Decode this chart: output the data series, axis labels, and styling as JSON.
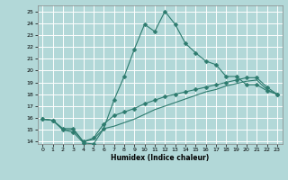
{
  "xlabel": "Humidex (Indice chaleur)",
  "bg_color": "#b2d8d8",
  "grid_color": "#ffffff",
  "line_color": "#2d7b6e",
  "xlim": [
    -0.5,
    23.5
  ],
  "ylim": [
    13.8,
    25.5
  ],
  "xticks": [
    0,
    1,
    2,
    3,
    4,
    5,
    6,
    7,
    8,
    9,
    10,
    11,
    12,
    13,
    14,
    15,
    16,
    17,
    18,
    19,
    20,
    21,
    22,
    23
  ],
  "yticks": [
    14,
    15,
    16,
    17,
    18,
    19,
    20,
    21,
    22,
    23,
    24,
    25
  ],
  "curve1_x": [
    0,
    1,
    2,
    3,
    4,
    5,
    6,
    7,
    8,
    9,
    10,
    11,
    12,
    13,
    14,
    15,
    16,
    17,
    18,
    19,
    20,
    21,
    22,
    23
  ],
  "curve1_y": [
    15.9,
    15.8,
    15.0,
    14.8,
    13.9,
    13.8,
    15.1,
    17.5,
    19.5,
    21.8,
    23.9,
    23.3,
    25.0,
    23.9,
    22.3,
    21.5,
    20.8,
    20.5,
    19.5,
    19.5,
    18.8,
    18.8,
    18.3,
    18.0
  ],
  "curve2_x": [
    0,
    1,
    2,
    3,
    4,
    5,
    6,
    7,
    8,
    9,
    10,
    11,
    12,
    13,
    14,
    15,
    16,
    17,
    18,
    19,
    20,
    21,
    22,
    23
  ],
  "curve2_y": [
    15.9,
    15.8,
    15.1,
    15.1,
    14.0,
    14.3,
    15.5,
    16.2,
    16.5,
    16.8,
    17.2,
    17.5,
    17.8,
    18.0,
    18.2,
    18.4,
    18.6,
    18.8,
    19.0,
    19.2,
    19.4,
    19.4,
    18.6,
    18.0
  ],
  "curve3_x": [
    0,
    1,
    2,
    3,
    4,
    5,
    6,
    7,
    8,
    9,
    10,
    11,
    12,
    13,
    14,
    15,
    16,
    17,
    18,
    19,
    20,
    21,
    22,
    23
  ],
  "curve3_y": [
    15.9,
    15.8,
    15.0,
    15.0,
    14.0,
    14.2,
    15.1,
    15.3,
    15.6,
    15.9,
    16.3,
    16.7,
    17.0,
    17.3,
    17.6,
    17.9,
    18.2,
    18.4,
    18.7,
    18.9,
    19.1,
    19.2,
    18.4,
    18.0
  ]
}
